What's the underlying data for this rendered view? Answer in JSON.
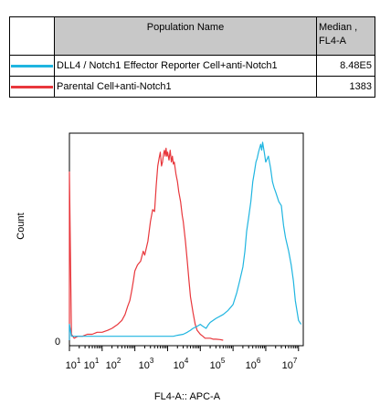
{
  "table": {
    "header": {
      "population_label": "Population Name",
      "median_label_line1": "Median ,",
      "median_label_line2": "FL4-A"
    },
    "rows": [
      {
        "name": "DLL4 / Notch1 Effector Reporter Cell+anti-Notch1",
        "median": "8.48E5",
        "color": "#1fb5e0"
      },
      {
        "name": "Parental Cell+anti-Notch1",
        "median": "1383",
        "color": "#e8373c"
      }
    ]
  },
  "chart_data": {
    "type": "line",
    "title": "",
    "xlabel": "FL4-A:: APC-A",
    "ylabel": "Count",
    "x_scale": "log",
    "xlim": [
      1,
      14000000
    ],
    "ylim": [
      0,
      100
    ],
    "y_tick_labels": [
      "0"
    ],
    "x_tick_labels": [
      {
        "base": "10",
        "exp": "1"
      },
      {
        "base": "10",
        "exp": "1"
      },
      {
        "base": "10",
        "exp": "2"
      },
      {
        "base": "10",
        "exp": "3"
      },
      {
        "base": "10",
        "exp": "4"
      },
      {
        "base": "10",
        "exp": "5"
      },
      {
        "base": "10",
        "exp": "6"
      },
      {
        "base": "10",
        "exp": "7"
      }
    ],
    "series": [
      {
        "name": "Parental Cell+anti-Notch1",
        "color": "#e8373c",
        "x": [
          1,
          1,
          1.15,
          1.4,
          1.8,
          2.5,
          3.5,
          5,
          7,
          10,
          15,
          20,
          30,
          40,
          50,
          60,
          70,
          80,
          90,
          100,
          120,
          150,
          180,
          200,
          250,
          300,
          350,
          400,
          450,
          500,
          550,
          600,
          650,
          700,
          750,
          800,
          850,
          900,
          950,
          1000,
          1100,
          1200,
          1300,
          1400,
          1500,
          1600,
          1800,
          2000,
          2200,
          2500,
          2800,
          3000,
          3500,
          4000,
          4500,
          5000,
          6000,
          7000,
          8000,
          10000,
          12000,
          14000,
          16000,
          20000,
          25000,
          30000,
          40000,
          50000
        ],
        "y": [
          0,
          85,
          3,
          1,
          2,
          2,
          3,
          3,
          4,
          4,
          5,
          6,
          8,
          10,
          13,
          17,
          20,
          25,
          30,
          35,
          38,
          40,
          45,
          43,
          50,
          60,
          66,
          65,
          78,
          88,
          92,
          95,
          88,
          90,
          94,
          96,
          93,
          97,
          93,
          95,
          91,
          96,
          90,
          93,
          89,
          90,
          84,
          80,
          75,
          70,
          63,
          60,
          50,
          40,
          30,
          22,
          14,
          8,
          5,
          3,
          2,
          1,
          1,
          1,
          0.5,
          0.5,
          0.3,
          0
        ]
      },
      {
        "name": "DLL4 / Notch1 Effector Reporter Cell+anti-Notch1",
        "color": "#1fb5e0",
        "x": [
          1,
          1,
          1.15,
          1.5,
          2,
          3,
          5,
          10,
          20,
          50,
          100,
          200,
          400,
          700,
          1000,
          1500,
          2000,
          3000,
          4000,
          5000,
          6000,
          8000,
          10000,
          12000,
          15000,
          18000,
          20000,
          30000,
          50000,
          70000,
          100000,
          130000,
          160000,
          200000,
          230000,
          260000,
          300000,
          350000,
          400000,
          450000,
          500000,
          550000,
          600000,
          650000,
          700000,
          750000,
          800000,
          900000,
          1000000,
          1200000,
          1400000,
          1600000,
          1800000,
          2000000,
          2500000,
          3000000,
          3500000,
          4000000,
          5000000,
          6000000,
          7000000,
          8000000,
          10000000,
          12000000
        ],
        "y": [
          0,
          8,
          2,
          2,
          2,
          2,
          2,
          2,
          2,
          2,
          2,
          2,
          2,
          2,
          2,
          2,
          2.5,
          3,
          4,
          5,
          6,
          7,
          8,
          7,
          6,
          8,
          9,
          11,
          13,
          15,
          18,
          24,
          30,
          37,
          45,
          55,
          62,
          70,
          80,
          85,
          90,
          92,
          95,
          97,
          99,
          96,
          100,
          95,
          90,
          93,
          87,
          80,
          77,
          75,
          70,
          68,
          58,
          52,
          45,
          38,
          30,
          20,
          10,
          8
        ]
      }
    ]
  }
}
